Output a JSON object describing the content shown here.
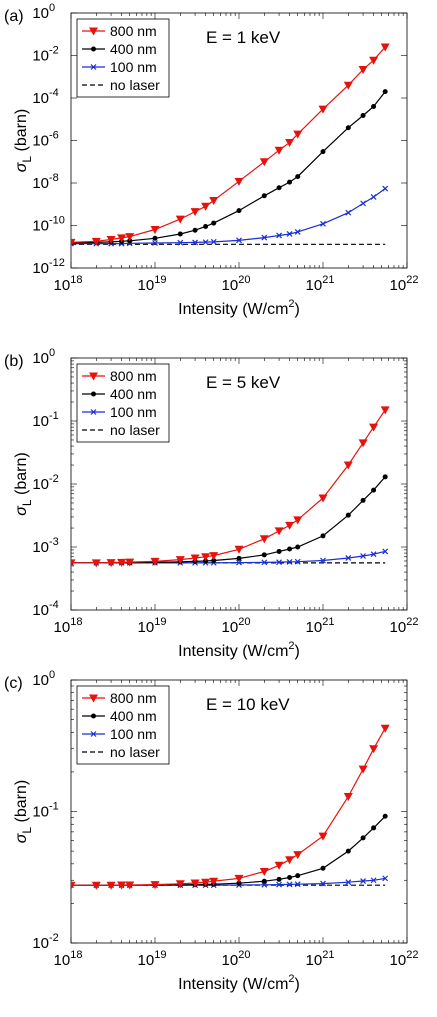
{
  "panels": [
    {
      "panel_label": "(a)",
      "annotation": "E = 1 keV",
      "xlabel": "Intensity (W/cm²)",
      "ylabel": "σL (barn)",
      "x_ticks": [
        {
          "exp": "18",
          "value": 1e+18
        },
        {
          "exp": "19",
          "value": 1e+19
        },
        {
          "exp": "20",
          "value": 1e+20
        },
        {
          "exp": "21",
          "value": 1e+21
        },
        {
          "exp": "22",
          "value": 1e+22
        }
      ],
      "y_ticks": [
        {
          "exp": "-12",
          "value": 1e-12
        },
        {
          "exp": "-10",
          "value": 1e-10
        },
        {
          "exp": "-8",
          "value": 1e-08
        },
        {
          "exp": "-6",
          "value": 1e-06
        },
        {
          "exp": "-4",
          "value": 0.0001
        },
        {
          "exp": "-2",
          "value": 0.01
        },
        {
          "exp": "0",
          "value": 1
        }
      ]
    },
    {
      "panel_label": "(b)",
      "annotation": "E = 5 keV",
      "xlabel": "Intensity (W/cm²)",
      "ylabel": "σL (barn)",
      "x_ticks": [
        {
          "exp": "18",
          "value": 1e+18
        },
        {
          "exp": "19",
          "value": 1e+19
        },
        {
          "exp": "20",
          "value": 1e+20
        },
        {
          "exp": "21",
          "value": 1e+21
        },
        {
          "exp": "22",
          "value": 1e+22
        }
      ],
      "y_ticks": [
        {
          "exp": "-4",
          "value": 0.0001
        },
        {
          "exp": "-3",
          "value": 0.001
        },
        {
          "exp": "-2",
          "value": 0.01
        },
        {
          "exp": "-1",
          "value": 0.1
        },
        {
          "exp": "0",
          "value": 1
        }
      ]
    },
    {
      "panel_label": "(c)",
      "annotation": "E = 10 keV",
      "xlabel": "Intensity (W/cm²)",
      "ylabel": "σL (barn)",
      "x_ticks": [
        {
          "exp": "18",
          "value": 1e+18
        },
        {
          "exp": "19",
          "value": 1e+19
        },
        {
          "exp": "20",
          "value": 1e+20
        },
        {
          "exp": "21",
          "value": 1e+21
        },
        {
          "exp": "22",
          "value": 1e+22
        }
      ],
      "y_ticks": [
        {
          "exp": "-2",
          "value": 0.01
        },
        {
          "exp": "-1",
          "value": 0.1
        },
        {
          "exp": "0",
          "value": 1
        }
      ]
    }
  ],
  "legend": {
    "entries": [
      {
        "label": "800 nm",
        "color": "#e8120c",
        "marker": "triangle-down"
      },
      {
        "label": "400 nm",
        "color": "#000000",
        "marker": "dot"
      },
      {
        "label": "100 nm",
        "color": "#1a2ed6",
        "marker": "x"
      },
      {
        "label": "no laser",
        "color": "#000000",
        "marker": "dashed"
      }
    ]
  },
  "chart_data": [
    {
      "type": "line",
      "title": "E = 1 keV",
      "xlabel": "Intensity (W/cm²)",
      "ylabel": "σL (barn)",
      "xscale": "log",
      "yscale": "log",
      "xlim": [
        1e+18,
        1e+22
      ],
      "ylim": [
        1e-12,
        1
      ],
      "legend_position": "top-left",
      "series": [
        {
          "name": "800 nm",
          "color": "#e8120c",
          "marker": "triangle-down",
          "x": [
            1e+18,
            2e+18,
            3e+18,
            4e+18,
            5e+18,
            1e+19,
            2e+19,
            3e+19,
            4e+19,
            5e+19,
            1e+20,
            2e+20,
            3e+20,
            4e+20,
            5e+20,
            1e+21,
            2e+21,
            3e+21,
            4e+21,
            5.5e+21
          ],
          "y": [
            1.6e-11,
            1.8e-11,
            2.2e-11,
            2.6e-11,
            3e-11,
            6.5e-11,
            2e-10,
            4.5e-10,
            8e-10,
            1.5e-09,
            1.2e-08,
            1e-07,
            3.5e-07,
            8e-07,
            2e-06,
            3e-05,
            0.0004,
            0.0022,
            0.006,
            0.025
          ]
        },
        {
          "name": "400 nm",
          "color": "#000000",
          "marker": "dot",
          "x": [
            1e+18,
            2e+18,
            3e+18,
            4e+18,
            5e+18,
            1e+19,
            2e+19,
            3e+19,
            4e+19,
            5e+19,
            1e+20,
            2e+20,
            3e+20,
            4e+20,
            5e+20,
            1e+21,
            2e+21,
            3e+21,
            4e+21,
            5.5e+21
          ],
          "y": [
            1.5e-11,
            1.6e-11,
            1.7e-11,
            1.8e-11,
            1.9e-11,
            2.5e-11,
            4e-11,
            6e-11,
            9e-11,
            1.3e-10,
            5e-10,
            2.5e-09,
            6e-09,
            1.1e-08,
            2e-08,
            3e-07,
            4e-06,
            1.5e-05,
            4e-05,
            0.0002
          ]
        },
        {
          "name": "100 nm",
          "color": "#1a2ed6",
          "marker": "x",
          "x": [
            1e+18,
            2e+18,
            3e+18,
            4e+18,
            5e+18,
            1e+19,
            2e+19,
            3e+19,
            4e+19,
            5e+19,
            1e+20,
            2e+20,
            3e+20,
            4e+20,
            5e+20,
            1e+21,
            2e+21,
            3e+21,
            4e+21,
            5.5e+21
          ],
          "y": [
            1.4e-11,
            1.4e-11,
            1.4e-11,
            1.4e-11,
            1.45e-11,
            1.5e-11,
            1.55e-11,
            1.6e-11,
            1.65e-11,
            1.7e-11,
            2e-11,
            2.7e-11,
            3.4e-11,
            4e-11,
            5e-11,
            1.2e-10,
            4e-10,
            1.1e-09,
            2.2e-09,
            5.5e-09
          ]
        },
        {
          "name": "no laser",
          "color": "#000000",
          "line": "dashed",
          "x": [
            1e+18,
            5.5e+21
          ],
          "y": [
            1.3e-11,
            1.3e-11
          ]
        }
      ]
    },
    {
      "type": "line",
      "title": "E = 5 keV",
      "xlabel": "Intensity (W/cm²)",
      "ylabel": "σL (barn)",
      "xscale": "log",
      "yscale": "log",
      "xlim": [
        1e+18,
        1e+22
      ],
      "ylim": [
        0.0001,
        1
      ],
      "legend_position": "top-left",
      "series": [
        {
          "name": "800 nm",
          "color": "#e8120c",
          "marker": "triangle-down",
          "x": [
            1e+18,
            2e+18,
            3e+18,
            4e+18,
            5e+18,
            1e+19,
            2e+19,
            3e+19,
            4e+19,
            5e+19,
            1e+20,
            2e+20,
            3e+20,
            4e+20,
            5e+20,
            1e+21,
            2e+21,
            3e+21,
            4e+21,
            5.5e+21
          ],
          "y": [
            0.00056,
            0.00056,
            0.000565,
            0.00057,
            0.000575,
            0.00059,
            0.00063,
            0.00067,
            0.0007,
            0.00073,
            0.00092,
            0.00135,
            0.0018,
            0.0022,
            0.0027,
            0.006,
            0.02,
            0.045,
            0.08,
            0.15
          ]
        },
        {
          "name": "400 nm",
          "color": "#000000",
          "marker": "dot",
          "x": [
            1e+18,
            2e+18,
            3e+18,
            4e+18,
            5e+18,
            1e+19,
            2e+19,
            3e+19,
            4e+19,
            5e+19,
            1e+20,
            2e+20,
            3e+20,
            4e+20,
            5e+20,
            1e+21,
            2e+21,
            3e+21,
            4e+21,
            5.5e+21
          ],
          "y": [
            0.00056,
            0.00056,
            0.00056,
            0.00056,
            0.00056,
            0.00057,
            0.00058,
            0.00059,
            0.0006,
            0.00061,
            0.00066,
            0.00075,
            0.00085,
            0.00093,
            0.001,
            0.0015,
            0.0032,
            0.0055,
            0.008,
            0.013
          ]
        },
        {
          "name": "100 nm",
          "color": "#1a2ed6",
          "marker": "x",
          "x": [
            1e+18,
            2e+18,
            3e+18,
            4e+18,
            5e+18,
            1e+19,
            2e+19,
            3e+19,
            4e+19,
            5e+19,
            1e+20,
            2e+20,
            3e+20,
            4e+20,
            5e+20,
            1e+21,
            2e+21,
            3e+21,
            4e+21,
            5.5e+21
          ],
          "y": [
            0.00056,
            0.00056,
            0.00056,
            0.00056,
            0.00056,
            0.00056,
            0.00056,
            0.00056,
            0.00056,
            0.00056,
            0.000565,
            0.00057,
            0.000575,
            0.00058,
            0.000585,
            0.00061,
            0.00067,
            0.00072,
            0.00077,
            0.00085
          ]
        },
        {
          "name": "no laser",
          "color": "#000000",
          "line": "dashed",
          "x": [
            1e+18,
            5.5e+21
          ],
          "y": [
            0.00056,
            0.00056
          ]
        }
      ]
    },
    {
      "type": "line",
      "title": "E = 10 keV",
      "xlabel": "Intensity (W/cm²)",
      "ylabel": "σL (barn)",
      "xscale": "log",
      "yscale": "log",
      "xlim": [
        1e+18,
        1e+22
      ],
      "ylim": [
        0.01,
        1
      ],
      "legend_position": "top-left",
      "series": [
        {
          "name": "800 nm",
          "color": "#e8120c",
          "marker": "triangle-down",
          "x": [
            1e+18,
            2e+18,
            3e+18,
            4e+18,
            5e+18,
            1e+19,
            2e+19,
            3e+19,
            4e+19,
            5e+19,
            1e+20,
            2e+20,
            3e+20,
            4e+20,
            5e+20,
            1e+21,
            2e+21,
            3e+21,
            4e+21,
            5.5e+21
          ],
          "y": [
            0.0275,
            0.0275,
            0.0275,
            0.0276,
            0.0276,
            0.0278,
            0.0282,
            0.0286,
            0.029,
            0.0295,
            0.031,
            0.035,
            0.039,
            0.043,
            0.047,
            0.065,
            0.13,
            0.21,
            0.3,
            0.43
          ]
        },
        {
          "name": "400 nm",
          "color": "#000000",
          "marker": "dot",
          "x": [
            1e+18,
            2e+18,
            3e+18,
            4e+18,
            5e+18,
            1e+19,
            2e+19,
            3e+19,
            4e+19,
            5e+19,
            1e+20,
            2e+20,
            3e+20,
            4e+20,
            5e+20,
            1e+21,
            2e+21,
            3e+21,
            4e+21,
            5.5e+21
          ],
          "y": [
            0.0275,
            0.0275,
            0.0275,
            0.0275,
            0.0275,
            0.0276,
            0.0277,
            0.0278,
            0.0279,
            0.028,
            0.0285,
            0.0295,
            0.0305,
            0.0315,
            0.0325,
            0.037,
            0.05,
            0.063,
            0.075,
            0.092
          ]
        },
        {
          "name": "100 nm",
          "color": "#1a2ed6",
          "marker": "x",
          "x": [
            1e+18,
            2e+18,
            3e+18,
            4e+18,
            5e+18,
            1e+19,
            2e+19,
            3e+19,
            4e+19,
            5e+19,
            1e+20,
            2e+20,
            3e+20,
            4e+20,
            5e+20,
            1e+21,
            2e+21,
            3e+21,
            4e+21,
            5.5e+21
          ],
          "y": [
            0.0275,
            0.0275,
            0.0275,
            0.0275,
            0.0275,
            0.0275,
            0.0275,
            0.0275,
            0.0275,
            0.0275,
            0.0276,
            0.0277,
            0.0278,
            0.0279,
            0.028,
            0.0283,
            0.029,
            0.0296,
            0.03,
            0.031
          ]
        },
        {
          "name": "no laser",
          "color": "#000000",
          "line": "dashed",
          "x": [
            1e+18,
            5.5e+21
          ],
          "y": [
            0.0275,
            0.0275
          ]
        }
      ]
    }
  ]
}
